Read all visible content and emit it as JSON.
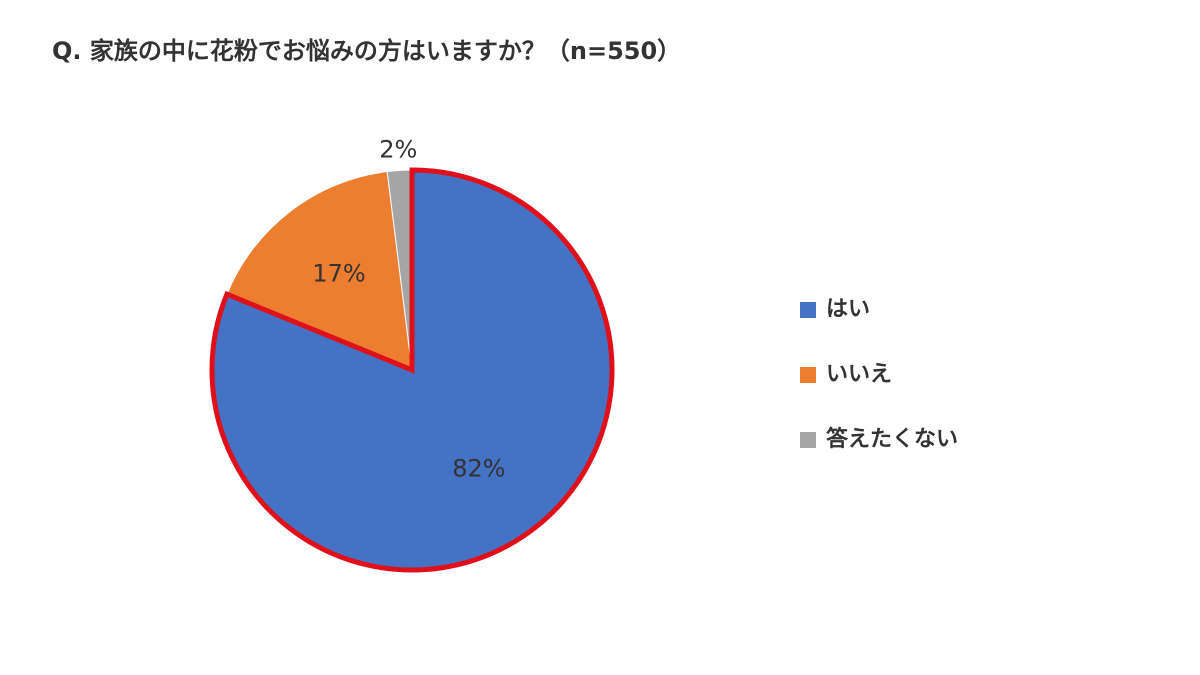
{
  "chart_data": {
    "type": "pie",
    "title": "Q. 家族の中に花粉でお悩みの方はいますか？（n=550）",
    "categories": [
      "はい",
      "いいえ",
      "答えたくない"
    ],
    "values": [
      82,
      17,
      2
    ],
    "value_labels": [
      "82%",
      "17%",
      "2%"
    ],
    "colors": [
      "#4472c4",
      "#ed7d31",
      "#a5a5a5"
    ],
    "highlight": {
      "index": 0,
      "color": "#e0101a"
    },
    "legend": "right"
  }
}
